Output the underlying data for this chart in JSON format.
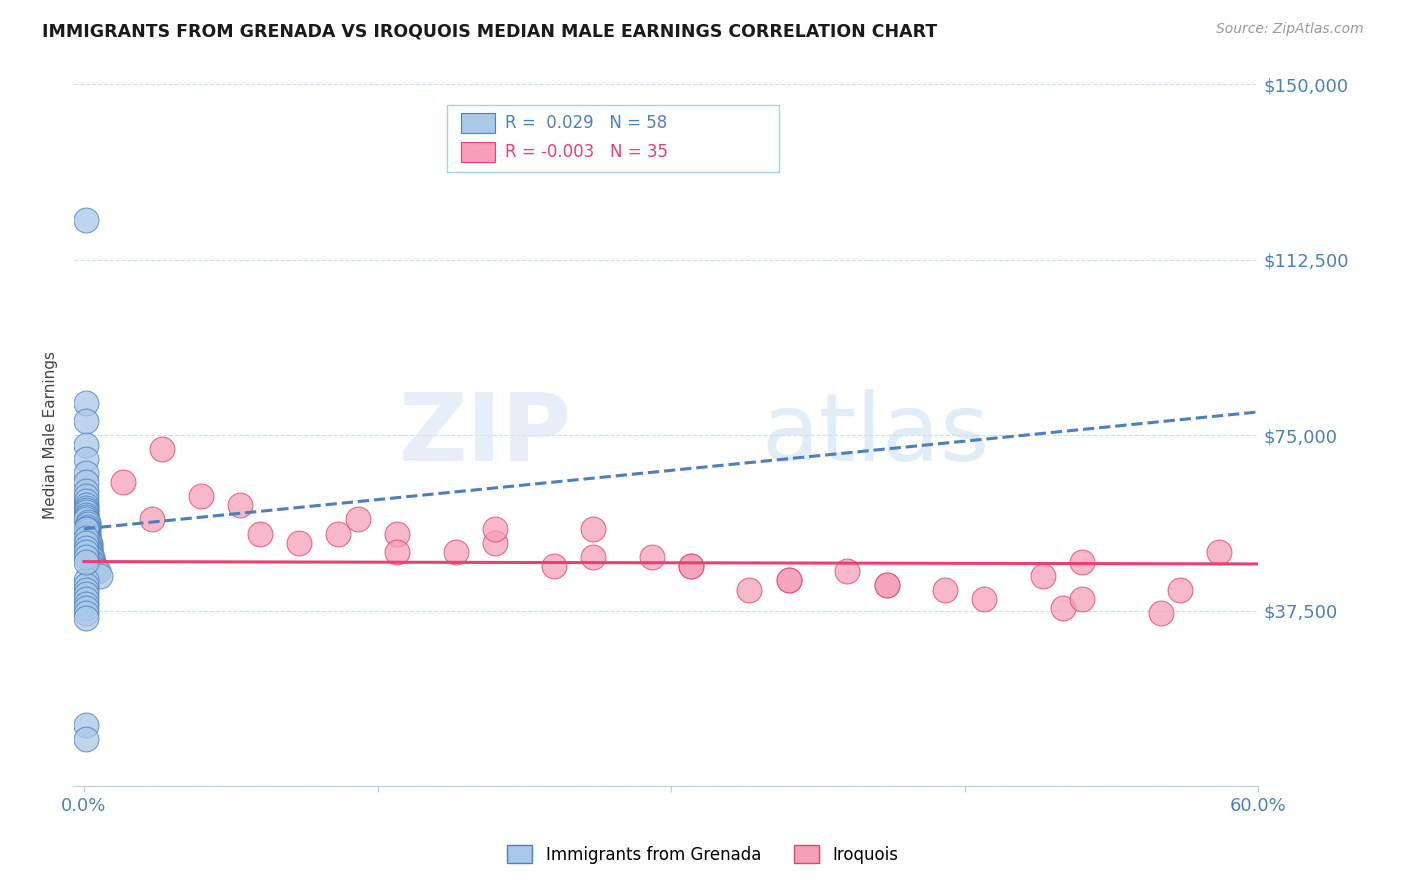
{
  "title": "IMMIGRANTS FROM GRENADA VS IROQUOIS MEDIAN MALE EARNINGS CORRELATION CHART",
  "source": "Source: ZipAtlas.com",
  "ylabel": "Median Male Earnings",
  "xlim": [
    -0.005,
    0.6
  ],
  "ylim": [
    0,
    150000
  ],
  "yticks": [
    0,
    37500,
    75000,
    112500,
    150000
  ],
  "ytick_labels": [
    "",
    "$37,500",
    "$75,000",
    "$112,500",
    "$150,000"
  ],
  "xticks": [
    0.0,
    0.15,
    0.3,
    0.45,
    0.6
  ],
  "xtick_labels": [
    "0.0%",
    "",
    "",
    "",
    "60.0%"
  ],
  "blue_R": 0.029,
  "blue_N": 58,
  "pink_R": -0.003,
  "pink_N": 35,
  "legend1": "Immigrants from Grenada",
  "legend2": "Iroquois",
  "blue_color": "#aac8e8",
  "pink_color": "#f5a0b8",
  "blue_line_color": "#4a80c0",
  "pink_line_color": "#e84070",
  "watermark_zip": "ZIP",
  "watermark_atlas": "atlas",
  "background_color": "#ffffff",
  "grid_color": "#c8ddf0",
  "blue_trend_x": [
    0.0,
    0.6
  ],
  "blue_trend_y": [
    55000,
    80000
  ],
  "pink_trend_x": [
    0.0,
    0.6
  ],
  "pink_trend_y": [
    48000,
    47500
  ],
  "blue_scatter_x": [
    0.001,
    0.001,
    0.001,
    0.001,
    0.001,
    0.001,
    0.001,
    0.001,
    0.001,
    0.001,
    0.001,
    0.001,
    0.001,
    0.001,
    0.001,
    0.001,
    0.001,
    0.002,
    0.002,
    0.002,
    0.002,
    0.002,
    0.002,
    0.002,
    0.002,
    0.002,
    0.003,
    0.003,
    0.003,
    0.003,
    0.003,
    0.003,
    0.004,
    0.004,
    0.004,
    0.005,
    0.005,
    0.006,
    0.007,
    0.008,
    0.001,
    0.001,
    0.001,
    0.001,
    0.001,
    0.001,
    0.001,
    0.001,
    0.001,
    0.001,
    0.001,
    0.001,
    0.001,
    0.001,
    0.001,
    0.001,
    0.001,
    0.001
  ],
  "blue_scatter_y": [
    121000,
    82000,
    78000,
    73000,
    70000,
    67000,
    65000,
    63000,
    62000,
    61000,
    60000,
    59500,
    59000,
    58500,
    58000,
    57500,
    57000,
    56500,
    56000,
    55500,
    55000,
    54500,
    54000,
    53500,
    53000,
    52500,
    52000,
    51500,
    51000,
    50500,
    50000,
    49500,
    49000,
    48500,
    48000,
    47500,
    47000,
    46500,
    46000,
    45000,
    44000,
    43000,
    42000,
    41000,
    40000,
    39000,
    38000,
    37000,
    36000,
    55000,
    53000,
    52000,
    51000,
    50000,
    49000,
    48000,
    13000,
    10000
  ],
  "pink_scatter_x": [
    0.02,
    0.035,
    0.06,
    0.09,
    0.11,
    0.14,
    0.16,
    0.19,
    0.21,
    0.24,
    0.26,
    0.29,
    0.31,
    0.34,
    0.36,
    0.39,
    0.41,
    0.44,
    0.46,
    0.49,
    0.5,
    0.55,
    0.58,
    0.04,
    0.08,
    0.13,
    0.16,
    0.21,
    0.26,
    0.31,
    0.36,
    0.41,
    0.51,
    0.56,
    0.51
  ],
  "pink_scatter_y": [
    65000,
    57000,
    62000,
    54000,
    52000,
    57000,
    54000,
    50000,
    52000,
    47000,
    55000,
    49000,
    47000,
    42000,
    44000,
    46000,
    43000,
    42000,
    40000,
    45000,
    38000,
    37000,
    50000,
    72000,
    60000,
    54000,
    50000,
    55000,
    49000,
    47000,
    44000,
    43000,
    40000,
    42000,
    48000
  ]
}
